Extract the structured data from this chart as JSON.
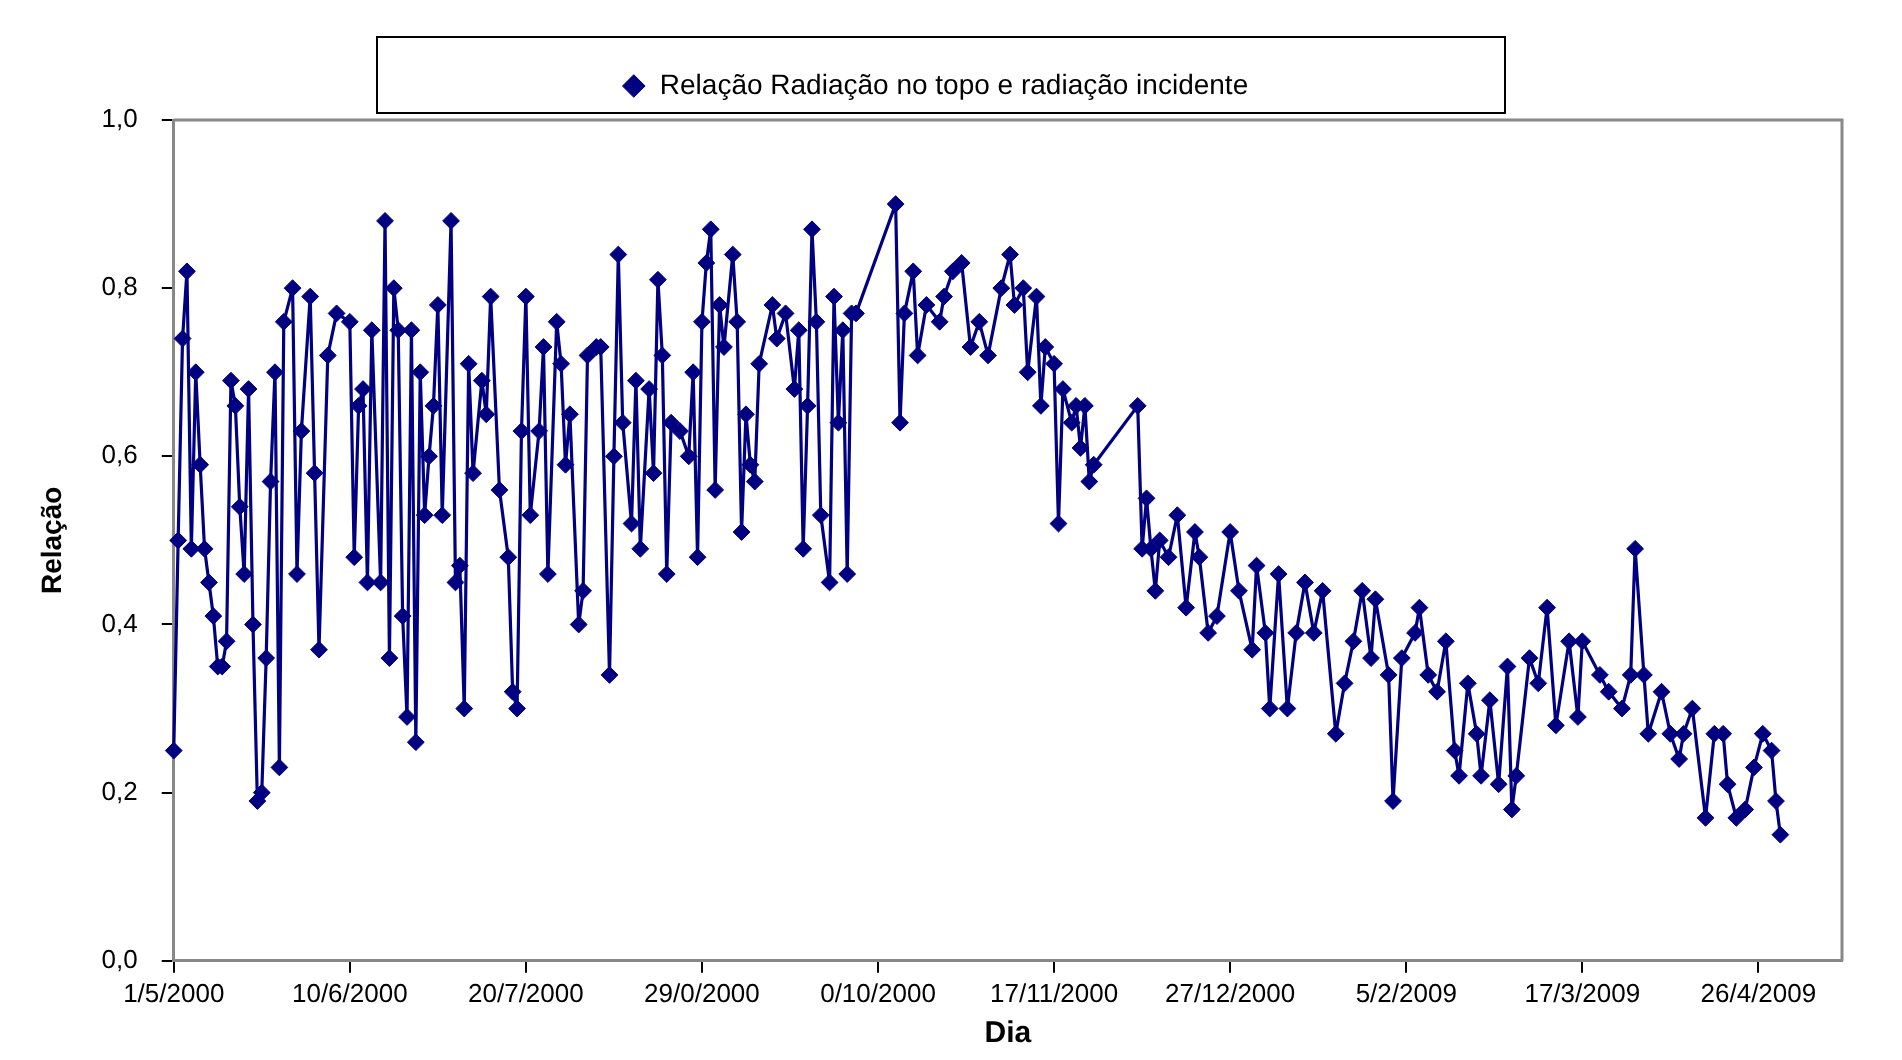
{
  "chart_data": {
    "type": "line",
    "xlabel": "Dia",
    "ylabel": "Relação",
    "legend": "top",
    "marker": "diamond",
    "line_style": "solid",
    "categories": [
      "1/5/2000",
      null,
      null,
      null,
      null,
      null,
      null,
      null,
      null,
      null,
      null,
      null,
      null,
      null,
      null,
      null,
      null,
      null,
      null,
      null,
      null,
      null,
      null,
      null,
      null,
      null,
      null,
      null,
      null,
      null,
      null,
      null,
      null,
      null,
      null,
      null,
      null,
      null,
      null,
      null,
      "10/6/2000",
      null,
      null,
      null,
      null,
      null,
      null,
      null,
      null,
      null,
      null,
      null,
      null,
      null,
      null,
      null,
      null,
      null,
      null,
      null,
      null,
      null,
      null,
      null,
      null,
      null,
      null,
      null,
      null,
      null,
      null,
      null,
      null,
      null,
      null,
      null,
      null,
      null,
      null,
      null,
      "20/7/2000",
      null,
      null,
      null,
      null,
      null,
      null,
      null,
      null,
      null,
      null,
      null,
      null,
      null,
      null,
      null,
      null,
      null,
      null,
      null,
      null,
      null,
      null,
      null,
      null,
      null,
      null,
      null,
      null,
      null,
      null,
      null,
      null,
      null,
      null,
      null,
      null,
      null,
      null,
      null,
      "29/0/2000",
      null,
      null,
      null,
      null,
      null,
      null,
      null,
      null,
      null,
      null,
      null,
      null,
      null,
      null,
      null,
      null,
      null,
      null,
      null,
      null,
      null,
      null,
      null,
      null,
      null,
      null,
      null,
      null,
      null,
      null,
      null,
      null,
      null,
      null,
      null,
      null,
      null,
      null,
      null,
      "0/10/2000",
      null,
      null,
      null,
      null,
      null,
      null,
      null,
      null,
      null,
      null,
      null,
      null,
      null,
      null,
      null,
      null,
      null,
      null,
      null,
      null,
      null,
      null,
      null,
      null,
      null,
      null,
      null,
      null,
      null,
      null,
      null,
      null,
      null,
      null,
      null,
      null,
      null,
      null,
      null,
      "17/11/2000",
      null,
      null,
      null,
      null,
      null,
      null,
      null,
      null,
      null,
      null,
      null,
      null,
      null,
      null,
      null,
      null,
      null,
      null,
      null,
      null,
      null,
      null,
      null,
      null,
      null,
      null,
      null,
      null,
      null,
      null,
      null,
      null,
      null,
      null,
      null,
      null,
      null,
      null,
      null,
      "27/12/2000",
      null,
      null,
      null,
      null,
      null,
      null,
      null,
      null,
      null,
      null,
      null,
      null,
      null,
      null,
      null,
      null,
      null,
      null,
      null,
      null,
      null,
      null,
      null,
      null,
      null,
      null,
      null,
      null,
      null,
      null,
      null,
      null,
      null,
      null,
      null,
      null,
      null,
      null,
      null,
      "5/2/2009",
      null,
      null,
      null,
      null,
      null,
      null,
      null,
      null,
      null,
      null,
      null,
      null,
      null,
      null,
      null,
      null,
      null,
      null,
      null,
      null,
      null,
      null,
      null,
      null,
      null,
      null,
      null,
      null,
      null,
      null,
      null,
      null,
      null,
      null,
      null,
      null,
      null,
      null,
      null,
      "17/3/2009",
      null,
      null,
      null,
      null,
      null,
      null,
      null,
      null,
      null,
      null,
      null,
      null,
      null,
      null,
      null,
      null,
      null,
      null,
      null,
      null,
      null,
      null,
      null,
      null,
      null,
      null,
      null,
      null,
      null,
      null,
      null,
      null,
      null,
      null,
      null,
      null,
      null,
      null,
      null,
      "26/4/2009",
      null,
      null,
      null,
      null,
      null,
      null,
      null,
      null,
      null,
      null,
      null,
      null,
      null,
      null,
      null,
      null,
      null,
      null,
      null
    ],
    "ylim": [
      0,
      1
    ],
    "yticks": [
      {
        "value": 0,
        "label": "0,0"
      },
      {
        "value": 0.2,
        "label": "0,2"
      },
      {
        "value": 0.4,
        "label": "0,4"
      },
      {
        "value": 0.6,
        "label": "0,6"
      },
      {
        "value": 0.8,
        "label": "0,8"
      },
      {
        "value": 1,
        "label": "1,0"
      }
    ],
    "series": [
      {
        "name": "Relação Radiação no topo e radiação incidente",
        "color": "#000080",
        "values": [
          0.25,
          0.5,
          0.74,
          0.82,
          0.49,
          0.7,
          0.59,
          0.49,
          0.45,
          0.41,
          0.35,
          0.35,
          0.38,
          0.69,
          0.66,
          0.54,
          0.46,
          0.68,
          0.4,
          0.19,
          0.2,
          0.36,
          0.57,
          0.7,
          0.23,
          0.76,
          null,
          0.8,
          0.46,
          0.63,
          null,
          0.79,
          0.58,
          0.37,
          null,
          0.72,
          null,
          0.77,
          null,
          null,
          0.76,
          0.48,
          0.66,
          0.68,
          0.45,
          0.75,
          null,
          0.45,
          0.88,
          0.36,
          0.8,
          0.75,
          0.41,
          0.29,
          0.75,
          0.26,
          0.7,
          0.53,
          0.6,
          0.66,
          0.78,
          0.53,
          null,
          0.88,
          0.45,
          0.47,
          0.3,
          0.71,
          0.58,
          null,
          0.69,
          0.65,
          0.79,
          null,
          0.56,
          null,
          0.48,
          0.32,
          0.3,
          0.63,
          0.79,
          0.53,
          null,
          0.63,
          0.73,
          0.46,
          null,
          0.76,
          0.71,
          0.59,
          0.65,
          null,
          0.4,
          0.44,
          0.72,
          null,
          0.73,
          0.73,
          null,
          0.34,
          0.6,
          0.84,
          0.64,
          null,
          0.52,
          0.69,
          0.49,
          null,
          0.68,
          0.58,
          0.81,
          0.72,
          0.46,
          0.64,
          null,
          0.63,
          null,
          0.6,
          0.7,
          0.48,
          0.76,
          0.83,
          0.87,
          0.56,
          0.78,
          0.73,
          null,
          0.84,
          0.76,
          0.51,
          0.65,
          0.59,
          0.57,
          0.71,
          null,
          null,
          0.78,
          0.74,
          null,
          0.77,
          null,
          0.68,
          0.75,
          0.49,
          0.66,
          0.87,
          0.76,
          0.53,
          null,
          0.45,
          0.79,
          0.64,
          0.75,
          0.46,
          0.77,
          0.77,
          null,
          null,
          null,
          null,
          null,
          null,
          null,
          null,
          0.9,
          0.64,
          0.77,
          null,
          0.82,
          0.72,
          null,
          0.78,
          null,
          null,
          0.76,
          0.79,
          null,
          0.82,
          null,
          0.83,
          null,
          0.73,
          null,
          0.76,
          null,
          0.72,
          null,
          null,
          0.8,
          null,
          0.84,
          0.78,
          null,
          0.8,
          0.7,
          null,
          0.79,
          0.66,
          0.73,
          null,
          0.71,
          0.52,
          0.68,
          null,
          0.64,
          0.66,
          0.61,
          0.66,
          0.57,
          0.59,
          null,
          null,
          null,
          null,
          null,
          null,
          null,
          null,
          null,
          0.66,
          0.49,
          0.55,
          0.49,
          0.44,
          0.5,
          null,
          0.48,
          null,
          0.53,
          null,
          0.42,
          null,
          0.51,
          0.48,
          null,
          0.39,
          null,
          0.41,
          null,
          null,
          0.51,
          null,
          0.44,
          null,
          null,
          0.37,
          0.47,
          null,
          0.39,
          0.3,
          null,
          0.46,
          null,
          0.3,
          null,
          0.39,
          null,
          0.45,
          null,
          0.39,
          null,
          0.44,
          null,
          null,
          0.27,
          null,
          0.33,
          null,
          0.38,
          null,
          0.44,
          null,
          0.36,
          0.43,
          null,
          null,
          0.34,
          0.19,
          null,
          0.36,
          null,
          null,
          0.39,
          0.42,
          null,
          0.34,
          null,
          0.32,
          null,
          0.38,
          null,
          0.25,
          0.22,
          null,
          0.33,
          null,
          0.27,
          0.22,
          null,
          0.31,
          null,
          0.21,
          null,
          0.35,
          0.18,
          0.22,
          null,
          null,
          0.36,
          null,
          0.33,
          null,
          0.42,
          null,
          0.28,
          null,
          null,
          0.38,
          null,
          0.29,
          0.38,
          null,
          null,
          null,
          0.34,
          null,
          0.32,
          null,
          null,
          0.3,
          null,
          0.34,
          0.49,
          null,
          0.34,
          0.27,
          null,
          null,
          0.32,
          null,
          0.27,
          null,
          0.24,
          0.27,
          null,
          0.3,
          null,
          null,
          0.17,
          null,
          0.27,
          null,
          0.27,
          0.21,
          null,
          0.17,
          null,
          0.18,
          null,
          0.23,
          null,
          0.27,
          null,
          0.25,
          0.19,
          0.15,
          null,
          null,
          null,
          null,
          null,
          null,
          null,
          null,
          null,
          null,
          null,
          null,
          null,
          null
        ]
      }
    ]
  }
}
